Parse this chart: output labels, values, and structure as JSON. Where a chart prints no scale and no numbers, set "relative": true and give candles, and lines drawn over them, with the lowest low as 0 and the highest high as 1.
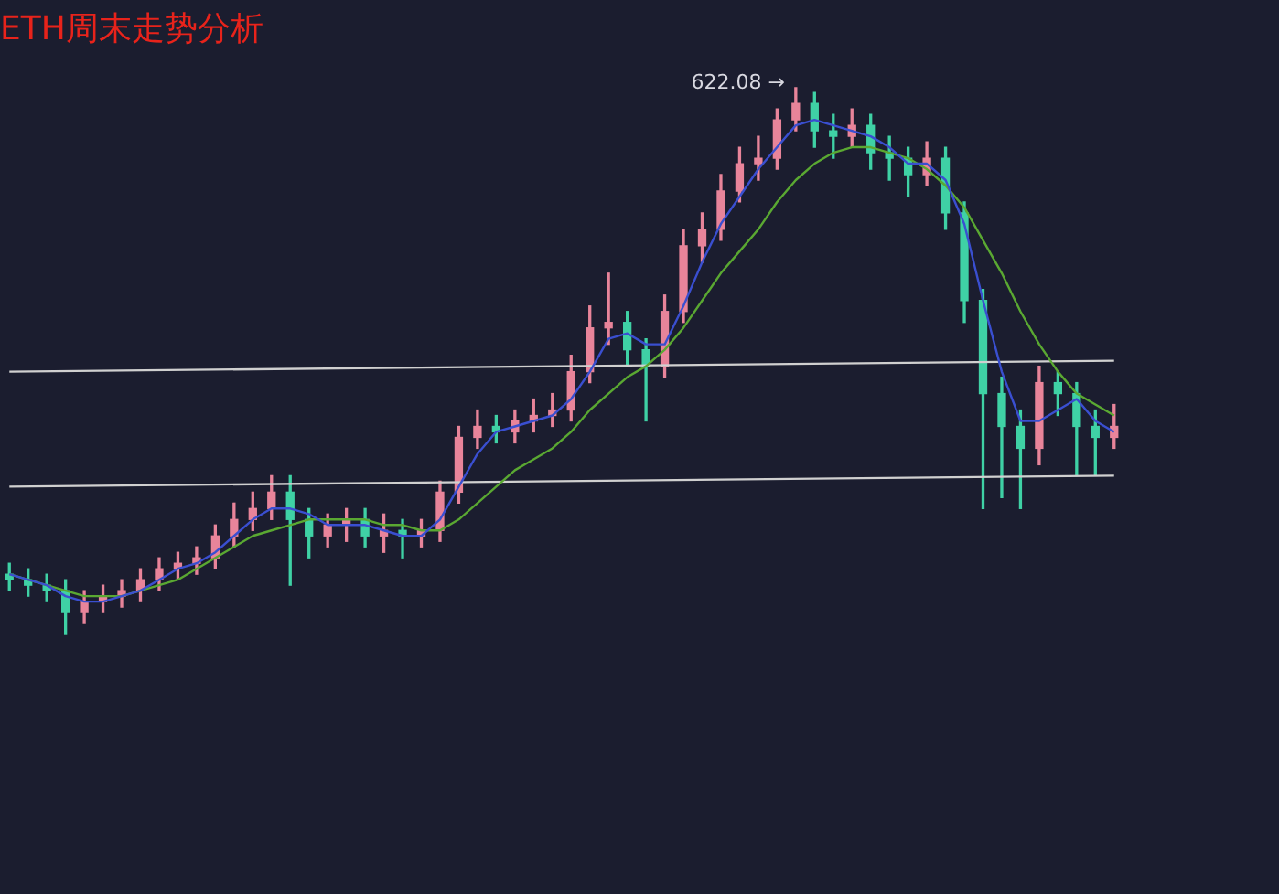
{
  "chart_data": {
    "type": "candlestick",
    "title": "ETH周末走势分析",
    "relative": true,
    "categories": [
      null,
      null,
      null,
      null,
      null,
      null,
      null,
      null,
      null,
      null,
      null,
      null,
      null,
      null,
      null,
      null,
      null,
      null,
      null,
      null,
      null,
      null,
      null,
      null,
      null,
      null,
      null,
      null,
      null,
      null,
      null,
      null,
      null,
      null,
      null,
      null,
      null,
      null,
      null,
      null,
      null,
      null,
      null,
      null,
      null,
      null,
      null,
      null,
      null,
      null,
      null,
      null,
      null,
      null,
      null,
      null,
      null,
      null,
      null,
      null
    ],
    "ohlc": [
      [
        0.11,
        0.13,
        0.08,
        0.1
      ],
      [
        0.1,
        0.12,
        0.07,
        0.09
      ],
      [
        0.09,
        0.11,
        0.06,
        0.08
      ],
      [
        0.08,
        0.1,
        0,
        0.04
      ],
      [
        0.04,
        0.08,
        0.02,
        0.06
      ],
      [
        0.06,
        0.09,
        0.04,
        0.07
      ],
      [
        0.07,
        0.1,
        0.05,
        0.08
      ],
      [
        0.08,
        0.12,
        0.06,
        0.1
      ],
      [
        0.1,
        0.14,
        0.08,
        0.12
      ],
      [
        0.12,
        0.15,
        0.1,
        0.13
      ],
      [
        0.13,
        0.16,
        0.11,
        0.14
      ],
      [
        0.14,
        0.2,
        0.12,
        0.18
      ],
      [
        0.18,
        0.24,
        0.16,
        0.21
      ],
      [
        0.21,
        0.26,
        0.19,
        0.23
      ],
      [
        0.23,
        0.29,
        0.21,
        0.26
      ],
      [
        0.26,
        0.29,
        0.09,
        0.21
      ],
      [
        0.21,
        0.23,
        0.14,
        0.18
      ],
      [
        0.18,
        0.22,
        0.16,
        0.2
      ],
      [
        0.2,
        0.23,
        0.17,
        0.21
      ],
      [
        0.21,
        0.23,
        0.16,
        0.18
      ],
      [
        0.18,
        0.22,
        0.15,
        0.19
      ],
      [
        0.19,
        0.21,
        0.14,
        0.18
      ],
      [
        0.18,
        0.21,
        0.16,
        0.19
      ],
      [
        0.19,
        0.28,
        0.17,
        0.26
      ],
      [
        0.26,
        0.38,
        0.24,
        0.36
      ],
      [
        0.36,
        0.41,
        0.34,
        0.38
      ],
      [
        0.38,
        0.4,
        0.35,
        0.37
      ],
      [
        0.37,
        0.41,
        0.35,
        0.39
      ],
      [
        0.39,
        0.43,
        0.37,
        0.4
      ],
      [
        0.4,
        0.44,
        0.38,
        0.41
      ],
      [
        0.41,
        0.51,
        0.39,
        0.48
      ],
      [
        0.48,
        0.6,
        0.46,
        0.56
      ],
      [
        0.56,
        0.66,
        0.53,
        0.57
      ],
      [
        0.57,
        0.59,
        0.49,
        0.52
      ],
      [
        0.52,
        0.54,
        0.39,
        0.49
      ],
      [
        0.49,
        0.62,
        0.47,
        0.59
      ],
      [
        0.59,
        0.74,
        0.57,
        0.71
      ],
      [
        0.71,
        0.77,
        0.68,
        0.74
      ],
      [
        0.74,
        0.84,
        0.72,
        0.81
      ],
      [
        0.81,
        0.89,
        0.79,
        0.86
      ],
      [
        0.86,
        0.91,
        0.83,
        0.87
      ],
      [
        0.87,
        0.96,
        0.85,
        0.94
      ],
      [
        0.94,
        1,
        0.92,
        0.97
      ],
      [
        0.97,
        0.99,
        0.89,
        0.92
      ],
      [
        0.92,
        0.95,
        0.87,
        0.91
      ],
      [
        0.91,
        0.96,
        0.89,
        0.93
      ],
      [
        0.93,
        0.95,
        0.85,
        0.88
      ],
      [
        0.88,
        0.91,
        0.83,
        0.87
      ],
      [
        0.87,
        0.89,
        0.8,
        0.84
      ],
      [
        0.84,
        0.9,
        0.82,
        0.87
      ],
      [
        0.87,
        0.89,
        0.74,
        0.77
      ],
      [
        0.77,
        0.79,
        0.57,
        0.61
      ],
      [
        0.61,
        0.63,
        0.23,
        0.44
      ],
      [
        0.44,
        0.47,
        0.25,
        0.38
      ],
      [
        0.38,
        0.41,
        0.23,
        0.34
      ],
      [
        0.34,
        0.49,
        0.31,
        0.46
      ],
      [
        0.46,
        0.48,
        0.4,
        0.44
      ],
      [
        0.44,
        0.46,
        0.29,
        0.38
      ],
      [
        0.38,
        0.41,
        0.29,
        0.36
      ],
      [
        0.36,
        0.42,
        0.34,
        0.38
      ]
    ],
    "series": [
      {
        "type": "line",
        "color": "#3a4fd0",
        "values": [
          0.11,
          0.1,
          0.09,
          0.07,
          0.06,
          0.06,
          0.07,
          0.08,
          0.1,
          0.12,
          0.13,
          0.15,
          0.18,
          0.21,
          0.23,
          0.23,
          0.22,
          0.2,
          0.2,
          0.2,
          0.19,
          0.18,
          0.18,
          0.21,
          0.27,
          0.33,
          0.37,
          0.38,
          0.39,
          0.4,
          0.43,
          0.48,
          0.54,
          0.55,
          0.53,
          0.53,
          0.6,
          0.68,
          0.75,
          0.8,
          0.85,
          0.89,
          0.93,
          0.94,
          0.93,
          0.92,
          0.91,
          0.89,
          0.86,
          0.86,
          0.83,
          0.75,
          0.61,
          0.48,
          0.39,
          0.39,
          0.41,
          0.43,
          0.39,
          0.37
        ]
      },
      {
        "type": "line",
        "color": "#5aa832",
        "values": [
          0.11,
          0.1,
          0.09,
          0.08,
          0.07,
          0.07,
          0.07,
          0.08,
          0.09,
          0.1,
          0.12,
          0.14,
          0.16,
          0.18,
          0.19,
          0.2,
          0.21,
          0.21,
          0.21,
          0.21,
          0.2,
          0.2,
          0.19,
          0.19,
          0.21,
          0.24,
          0.27,
          0.3,
          0.32,
          0.34,
          0.37,
          0.41,
          0.44,
          0.47,
          0.49,
          0.52,
          0.56,
          0.61,
          0.66,
          0.7,
          0.74,
          0.79,
          0.83,
          0.86,
          0.88,
          0.89,
          0.89,
          0.88,
          0.87,
          0.85,
          0.82,
          0.78,
          0.72,
          0.66,
          0.59,
          0.53,
          0.48,
          0.44,
          0.42,
          0.4
        ]
      },
      {
        "type": "line",
        "color": "#d0d0d0",
        "values": [
          0.48,
          null,
          null,
          null,
          null,
          null,
          null,
          null,
          null,
          null,
          null,
          null,
          null,
          null,
          null,
          null,
          null,
          null,
          null,
          null,
          null,
          null,
          null,
          null,
          null,
          null,
          null,
          null,
          null,
          null,
          null,
          null,
          null,
          null,
          null,
          null,
          null,
          null,
          null,
          null,
          null,
          null,
          null,
          null,
          null,
          null,
          null,
          null,
          null,
          null,
          null,
          null,
          null,
          null,
          null,
          null,
          null,
          null,
          null,
          0.5
        ]
      },
      {
        "type": "line",
        "color": "#d0d0d0",
        "values": [
          0.27,
          null,
          null,
          null,
          null,
          null,
          null,
          null,
          null,
          null,
          null,
          null,
          null,
          null,
          null,
          null,
          null,
          null,
          null,
          null,
          null,
          null,
          null,
          null,
          null,
          null,
          null,
          null,
          null,
          null,
          null,
          null,
          null,
          null,
          null,
          null,
          null,
          null,
          null,
          null,
          null,
          null,
          null,
          null,
          null,
          null,
          null,
          null,
          null,
          null,
          null,
          null,
          null,
          null,
          null,
          null,
          null,
          null,
          null,
          0.29
        ]
      }
    ],
    "annotations": [
      "622.08 →"
    ]
  }
}
